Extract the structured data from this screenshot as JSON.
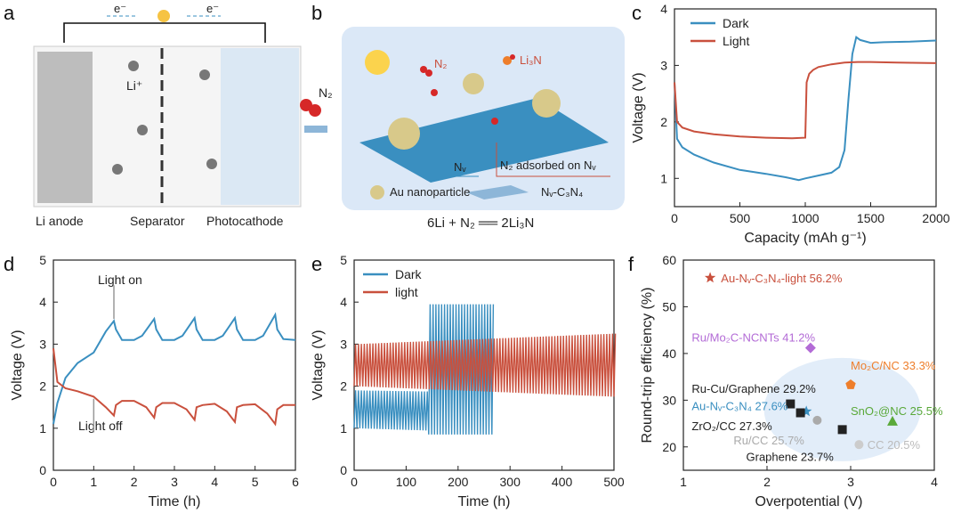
{
  "panels": {
    "a": {
      "label": "a",
      "electron_left": "e⁻",
      "electron_right": "e⁻",
      "li_ion": "Li⁺",
      "n2": "N₂",
      "anode": "Li anode",
      "separator": "Separator",
      "photocathode": "Photocathode"
    },
    "b": {
      "label": "b",
      "n2": "N₂",
      "li3n": "Li₃N",
      "nv": "Nᵥ",
      "n2_adsorbed": "N₂ adsorbed on Nᵥ",
      "au_legend": "Au nanoparticle",
      "c3n4_legend": "Nᵥ-C₃N₄",
      "equation": "6Li + N₂ ══ 2Li₃N"
    },
    "c": {
      "label": "c"
    },
    "d": {
      "label": "d",
      "light_on": "Light on",
      "light_off": "Light off"
    },
    "e": {
      "label": "e"
    },
    "f": {
      "label": "f"
    }
  },
  "chart_data": [
    {
      "id": "c",
      "type": "line",
      "xlabel": "Capacity (mAh g⁻¹)",
      "ylabel": "Voltage (V)",
      "xlim": [
        0,
        2000
      ],
      "ylim": [
        0.5,
        4
      ],
      "xticks": [
        0,
        500,
        1000,
        1500,
        2000
      ],
      "yticks": [
        1,
        2,
        3,
        4
      ],
      "legend": "top-left",
      "series": [
        {
          "name": "Dark",
          "color": "#3a8fc0",
          "x": [
            0,
            20,
            60,
            150,
            300,
            500,
            700,
            850,
            950,
            1000,
            1100,
            1200,
            1260,
            1300,
            1330,
            1360,
            1390,
            1420,
            1500,
            1600,
            1800,
            2000
          ],
          "y": [
            2.7,
            1.7,
            1.55,
            1.42,
            1.28,
            1.15,
            1.08,
            1.02,
            0.97,
            1.0,
            1.05,
            1.1,
            1.2,
            1.5,
            2.4,
            3.2,
            3.5,
            3.45,
            3.4,
            3.41,
            3.42,
            3.44
          ]
        },
        {
          "name": "Light",
          "color": "#c9503d",
          "x": [
            0,
            20,
            60,
            150,
            300,
            500,
            700,
            900,
            1000,
            1010,
            1030,
            1060,
            1100,
            1200,
            1300,
            1400,
            1500,
            1700,
            2000
          ],
          "y": [
            2.7,
            2.0,
            1.9,
            1.83,
            1.78,
            1.74,
            1.72,
            1.71,
            1.72,
            2.7,
            2.85,
            2.92,
            2.97,
            3.02,
            3.05,
            3.06,
            3.06,
            3.05,
            3.04
          ]
        }
      ]
    },
    {
      "id": "d",
      "type": "line",
      "xlabel": "Time (h)",
      "ylabel": "Voltage (V)",
      "xlim": [
        0,
        6
      ],
      "ylim": [
        0,
        5
      ],
      "xticks": [
        0,
        1,
        2,
        3,
        4,
        5,
        6
      ],
      "yticks": [
        0,
        1,
        2,
        3,
        4,
        5
      ],
      "series": [
        {
          "name": "Dark",
          "color": "#3a8fc0",
          "x": [
            0,
            0.1,
            0.3,
            0.6,
            1.0,
            1.3,
            1.5,
            1.55,
            1.7,
            2.0,
            2.2,
            2.5,
            2.55,
            2.7,
            3.0,
            3.2,
            3.5,
            3.55,
            3.7,
            4.0,
            4.2,
            4.5,
            4.55,
            4.7,
            5.0,
            5.2,
            5.5,
            5.55,
            5.7,
            6.0
          ],
          "y": [
            1.1,
            1.6,
            2.2,
            2.55,
            2.8,
            3.3,
            3.55,
            3.35,
            3.1,
            3.1,
            3.2,
            3.6,
            3.35,
            3.1,
            3.1,
            3.2,
            3.62,
            3.35,
            3.1,
            3.1,
            3.2,
            3.62,
            3.35,
            3.1,
            3.1,
            3.2,
            3.7,
            3.35,
            3.12,
            3.1
          ]
        },
        {
          "name": "Light",
          "color": "#c9503d",
          "x": [
            0,
            0.1,
            0.3,
            0.6,
            1.0,
            1.3,
            1.5,
            1.55,
            1.7,
            2.0,
            2.3,
            2.5,
            2.55,
            2.7,
            3.0,
            3.3,
            3.5,
            3.55,
            3.7,
            4.0,
            4.3,
            4.5,
            4.55,
            4.7,
            5.0,
            5.3,
            5.5,
            5.55,
            5.7,
            6.0
          ],
          "y": [
            2.9,
            2.1,
            1.95,
            1.88,
            1.75,
            1.5,
            1.3,
            1.55,
            1.65,
            1.65,
            1.5,
            1.25,
            1.5,
            1.6,
            1.6,
            1.45,
            1.2,
            1.5,
            1.55,
            1.58,
            1.4,
            1.15,
            1.5,
            1.55,
            1.57,
            1.35,
            1.1,
            1.45,
            1.55,
            1.55
          ]
        }
      ]
    },
    {
      "id": "e",
      "type": "line",
      "xlabel": "Time (h)",
      "ylabel": "Voltage (V)",
      "xlim": [
        0,
        500
      ],
      "ylim": [
        0,
        5
      ],
      "xticks": [
        0,
        100,
        200,
        300,
        400,
        500
      ],
      "yticks": [
        0,
        1,
        2,
        3,
        4,
        5
      ],
      "legend": "top-left",
      "series": [
        {
          "name": "Dark",
          "color": "#3a8fc0",
          "t_end": 265,
          "cycles": 48,
          "low": [
            1.0,
            0.9
          ],
          "high": [
            1.9,
            1.85
          ],
          "low_late": 0.85,
          "high_late": 3.95,
          "late_start": 140
        },
        {
          "name": "light",
          "color": "#c9503d",
          "t_end": 500,
          "cycles": 90,
          "low": [
            2.0,
            1.75
          ],
          "high": [
            3.0,
            3.25
          ]
        }
      ]
    },
    {
      "id": "f",
      "type": "scatter",
      "xlabel": "Overpotential (V)",
      "ylabel": "Round-trip efficiency (%)",
      "xlim": [
        1,
        4
      ],
      "ylim": [
        15,
        60
      ],
      "xticks": [
        1,
        2,
        3,
        4
      ],
      "yticks": [
        20,
        30,
        40,
        50,
        60
      ],
      "points": [
        {
          "label": "Au-Nᵥ-C₃N₄-light 56.2%",
          "x": 1.32,
          "y": 56.2,
          "marker": "star",
          "color": "#c9503d"
        },
        {
          "label": "Ru/Mo₂C-NCNTs 41.2%",
          "x": 2.52,
          "y": 41.2,
          "marker": "diamond",
          "color": "#b36bd6"
        },
        {
          "label": "Mo₂C/NC 33.3%",
          "x": 3.0,
          "y": 33.3,
          "marker": "pentagon",
          "color": "#ee7e2b"
        },
        {
          "label": "Ru-Cu/Graphene 29.2%",
          "x": 2.28,
          "y": 29.2,
          "marker": "square",
          "color": "#222222"
        },
        {
          "label": "Au-Nᵥ-C₃N₄ 27.6%",
          "x": 2.47,
          "y": 27.6,
          "marker": "star",
          "color": "#3a8fc0"
        },
        {
          "label": "SnO₂@NC 25.5%",
          "x": 3.5,
          "y": 25.5,
          "marker": "triangle",
          "color": "#5aa93a"
        },
        {
          "label": "ZrO₂/CC 27.3%",
          "x": 2.4,
          "y": 27.3,
          "marker": "square",
          "color": "#222222"
        },
        {
          "label": "Ru/CC 25.7%",
          "x": 2.6,
          "y": 25.7,
          "marker": "circle",
          "color": "#aaaaaa"
        },
        {
          "label": "Graphene 23.7%",
          "x": 2.9,
          "y": 23.7,
          "marker": "square",
          "color": "#222222"
        },
        {
          "label": "CC 20.5%",
          "x": 3.1,
          "y": 20.5,
          "marker": "circle",
          "color": "#cccccc"
        }
      ]
    }
  ]
}
